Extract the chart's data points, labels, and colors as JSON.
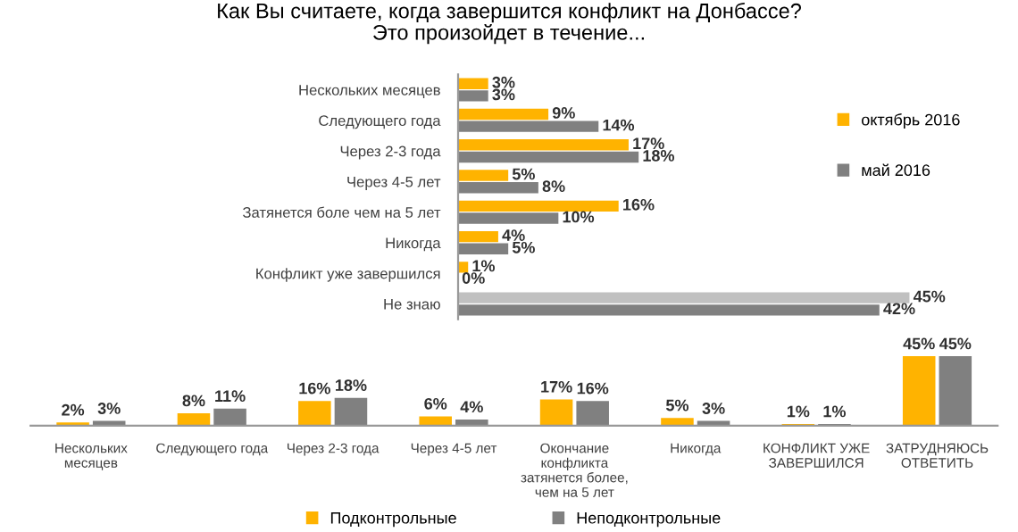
{
  "chart_data": [
    {
      "type": "bar",
      "orientation": "horizontal",
      "title": "Как Вы считаете, когда завершится конфликт на Донбассе?\nЭто произойдет в течение...",
      "categories": [
        "Нескольких месяцев",
        "Следующего года",
        "Через 2-3 года",
        "Через 4-5 лет",
        "Затянется боле чем на 5 лет",
        "Никогда",
        "Конфликт уже завершился",
        "Не знаю"
      ],
      "series": [
        {
          "name": "октябрь 2016",
          "color": "#ffb300",
          "colors": [
            "#ffb300",
            "#ffb300",
            "#ffb300",
            "#ffb300",
            "#ffb300",
            "#ffb300",
            "#ffb300",
            "#c0c0c0"
          ],
          "values": [
            3,
            9,
            17,
            5,
            16,
            4,
            1,
            45
          ],
          "value_labels": [
            "3%",
            "9%",
            "17%",
            "5%",
            "16%",
            "4%",
            "1%",
            "45%"
          ]
        },
        {
          "name": "май 2016",
          "color": "#808080",
          "values": [
            3,
            14,
            18,
            8,
            10,
            5,
            0,
            42
          ],
          "value_labels": [
            "3%",
            "14%",
            "18%",
            "8%",
            "10%",
            "5%",
            "0%",
            "42%"
          ]
        }
      ],
      "legend": "right",
      "tick_labels": "y",
      "grid": false
    },
    {
      "type": "bar",
      "categories": [
        "Нескольких\nмесяцев",
        "Следующего года",
        "Через 2-3 года",
        "Через 4-5 лет",
        "Окончание\nконфликта\nзатянется более,\nчем на 5 лет",
        "Никогда",
        "КОНФЛИКТ УЖЕ\nЗАВЕРШИЛСЯ",
        "ЗАТРУДНЯЮСЬ\nОТВЕТИТЬ"
      ],
      "series": [
        {
          "name": "Подконтрольные",
          "color": "#ffb300",
          "values": [
            2,
            8,
            16,
            6,
            17,
            5,
            1,
            45
          ],
          "value_labels": [
            "2%",
            "8%",
            "16%",
            "6%",
            "17%",
            "5%",
            "1%",
            "45%"
          ]
        },
        {
          "name": "Неподконтрольные",
          "color": "#808080",
          "values": [
            3,
            11,
            18,
            4,
            16,
            3,
            1,
            45
          ],
          "value_labels": [
            "3%",
            "11%",
            "18%",
            "4%",
            "16%",
            "3%",
            "1%",
            "45%"
          ]
        }
      ],
      "legend": "bottom",
      "tick_labels": "x",
      "grid": false
    }
  ]
}
